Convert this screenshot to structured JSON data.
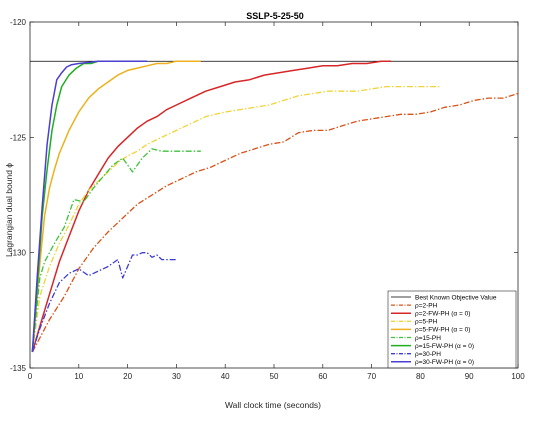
{
  "chart_data": {
    "type": "line",
    "title": "SSLP-5-25-50",
    "xlabel": "Wall clock time (seconds)",
    "ylabel": "Lagrangian dual bound ϕ",
    "xlim": [
      0,
      100
    ],
    "ylim": [
      -135,
      -120
    ],
    "xticks": [
      "0",
      "10",
      "20",
      "30",
      "40",
      "50",
      "60",
      "70",
      "80",
      "90",
      "100"
    ],
    "yticks": [
      "-120",
      "-125",
      "-130",
      "-135"
    ],
    "legend_position": "bottom-right",
    "grid": false,
    "reference_line": {
      "name": "Best Known Objective Value",
      "value": -121.7,
      "color": "#000000"
    },
    "series": [
      {
        "name": "ρ=2-PH",
        "color": "#D95319",
        "dash": "dashdot",
        "width": 1.3,
        "x": [
          0.5,
          2,
          4,
          7,
          10,
          13,
          16,
          19,
          22,
          25,
          28,
          31,
          34,
          37,
          40,
          43,
          46,
          49,
          52,
          55,
          58,
          61,
          64,
          67,
          70,
          73,
          76,
          79,
          82,
          85,
          88,
          91,
          94,
          97,
          100
        ],
        "y": [
          -134.3,
          -133.7,
          -132.9,
          -131.9,
          -130.7,
          -129.8,
          -129.1,
          -128.5,
          -127.9,
          -127.5,
          -127.1,
          -126.8,
          -126.5,
          -126.3,
          -126.0,
          -125.7,
          -125.5,
          -125.3,
          -125.2,
          -124.8,
          -124.7,
          -124.7,
          -124.5,
          -124.3,
          -124.2,
          -124.1,
          -124.0,
          -124.0,
          -123.9,
          -123.7,
          -123.6,
          -123.4,
          -123.3,
          -123.3,
          -123.1
        ]
      },
      {
        "name": "ρ=2-FW-PH (α = 0)",
        "color": "#D62728",
        "dash": "solid",
        "width": 1.5,
        "x": [
          0.5,
          2,
          4,
          6,
          8,
          10,
          12,
          14,
          16,
          18,
          20,
          22,
          24,
          26,
          28,
          30,
          33,
          36,
          39,
          42,
          45,
          48,
          51,
          54,
          57,
          60,
          63,
          66,
          69,
          72,
          74
        ],
        "y": [
          -134.3,
          -133.2,
          -131.8,
          -130.4,
          -129.3,
          -128.2,
          -127.3,
          -126.6,
          -125.9,
          -125.4,
          -125.0,
          -124.6,
          -124.3,
          -124.1,
          -123.8,
          -123.6,
          -123.3,
          -123.0,
          -122.8,
          -122.6,
          -122.5,
          -122.3,
          -122.2,
          -122.1,
          -122.0,
          -121.9,
          -121.9,
          -121.8,
          -121.8,
          -121.7,
          -121.7
        ]
      },
      {
        "name": "ρ=5-PH",
        "color": "#F0D43A",
        "dash": "dashdot",
        "width": 1.3,
        "x": [
          0.5,
          2,
          4,
          6,
          8,
          10,
          12,
          14,
          16,
          18,
          20,
          22,
          24,
          26,
          28,
          30,
          32,
          34,
          36,
          38,
          40,
          43,
          46,
          49,
          52,
          55,
          58,
          61,
          64,
          67,
          70,
          73,
          76,
          79,
          82,
          84
        ],
        "y": [
          -134.3,
          -131.9,
          -130.6,
          -129.6,
          -128.8,
          -127.9,
          -127.3,
          -126.9,
          -126.5,
          -126.1,
          -125.8,
          -125.6,
          -125.3,
          -125.1,
          -124.9,
          -124.7,
          -124.5,
          -124.3,
          -124.1,
          -124.0,
          -123.9,
          -123.8,
          -123.7,
          -123.6,
          -123.4,
          -123.2,
          -123.1,
          -123.0,
          -123.0,
          -123.0,
          -122.9,
          -122.8,
          -122.8,
          -122.8,
          -122.8,
          -122.8
        ]
      },
      {
        "name": "ρ=5-FW-PH (α = 0)",
        "color": "#EDB120",
        "dash": "solid",
        "width": 1.5,
        "x": [
          0.5,
          2,
          3,
          4,
          5,
          6,
          8,
          10,
          12,
          14,
          16,
          18,
          20,
          22,
          24,
          26,
          28,
          30,
          32,
          34,
          35
        ],
        "y": [
          -134.3,
          -130.5,
          -128.4,
          -127.2,
          -126.4,
          -125.7,
          -124.7,
          -123.9,
          -123.3,
          -122.9,
          -122.6,
          -122.3,
          -122.1,
          -122.0,
          -121.9,
          -121.8,
          -121.8,
          -121.7,
          -121.7,
          -121.7,
          -121.7
        ]
      },
      {
        "name": "ρ=15-PH",
        "color": "#3CC23C",
        "dash": "dashdot",
        "width": 1.3,
        "x": [
          0.5,
          2,
          3,
          5,
          7,
          9,
          11,
          13,
          15,
          17,
          19,
          21,
          23,
          25,
          27,
          30,
          33,
          35
        ],
        "y": [
          -134.3,
          -131.1,
          -130.4,
          -129.6,
          -128.9,
          -127.7,
          -127.8,
          -127.2,
          -126.7,
          -126.2,
          -125.9,
          -126.5,
          -125.9,
          -125.5,
          -125.6,
          -125.6,
          -125.6,
          -125.6
        ]
      },
      {
        "name": "ρ=15-FW-PH (α = 0)",
        "color": "#1FAE1F",
        "dash": "solid",
        "width": 1.5,
        "x": [
          0.5,
          1.5,
          2.5,
          3.5,
          4.5,
          5.5,
          6.5,
          8,
          9.5,
          11,
          12.5,
          14,
          15.5,
          17,
          18.5
        ],
        "y": [
          -134.3,
          -131.5,
          -128.4,
          -126.4,
          -124.7,
          -123.6,
          -122.8,
          -122.3,
          -122.0,
          -121.8,
          -121.8,
          -121.7,
          -121.7,
          -121.7,
          -121.7
        ]
      },
      {
        "name": "ρ=30-PH",
        "color": "#3D3DD6",
        "dash": "dashdot",
        "width": 1.3,
        "x": [
          0.5,
          2,
          4,
          6,
          8,
          10,
          12,
          14,
          16,
          18,
          19,
          20,
          21,
          22,
          23,
          24,
          25,
          26,
          27,
          28,
          29,
          30
        ],
        "y": [
          -134.3,
          -133.3,
          -132.2,
          -131.3,
          -130.9,
          -130.7,
          -131.0,
          -130.8,
          -130.6,
          -130.3,
          -131.1,
          -130.6,
          -130.1,
          -130.1,
          -130.0,
          -130.0,
          -130.2,
          -130.1,
          -130.3,
          -130.3,
          -130.3,
          -130.3
        ]
      },
      {
        "name": "ρ=30-FW-PH (α = 0)",
        "color": "#4B3FD0",
        "dash": "solid",
        "width": 1.5,
        "x": [
          0.5,
          1.5,
          2.5,
          3.5,
          4.5,
          5.5,
          6.5,
          7.5,
          8.5,
          10,
          12,
          14,
          16,
          18,
          20,
          22,
          24
        ],
        "y": [
          -134.3,
          -131.0,
          -128.0,
          -125.3,
          -123.6,
          -122.5,
          -122.2,
          -121.95,
          -121.85,
          -121.8,
          -121.75,
          -121.7,
          -121.7,
          -121.7,
          -121.7,
          -121.7,
          -121.7
        ]
      }
    ]
  }
}
